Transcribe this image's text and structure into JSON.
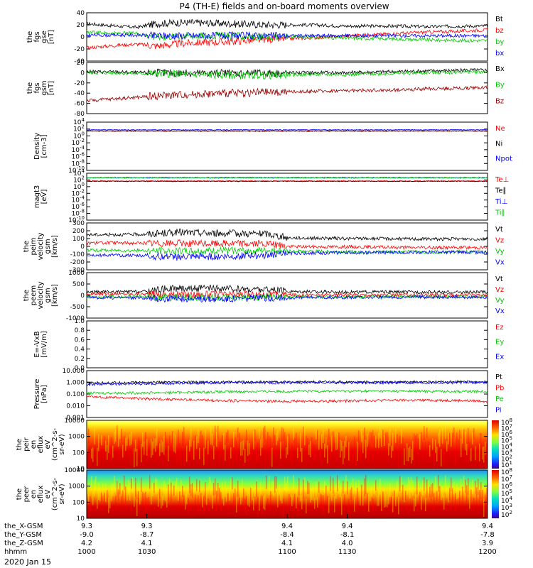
{
  "title": "P4 (TH-E) fields and on-board moments overview",
  "date_label": "2020 Jan 15",
  "colors": {
    "black": "#000000",
    "red": "#ff0000",
    "green": "#00cc00",
    "blue": "#0000ff",
    "darkred": "#990000"
  },
  "chart_data": [
    {
      "type": "line",
      "ylabel_lines": [
        "the",
        "fgs",
        "gse",
        "[nT]"
      ],
      "ylim": [
        -40,
        40
      ],
      "yticks": [
        "40",
        "20",
        "0",
        "-20",
        "-40"
      ],
      "series": [
        {
          "name": "Bt",
          "color": "#000000",
          "x": [
            1000,
            1015,
            1025,
            1035,
            1050,
            1070,
            1090,
            1110,
            1130,
            1150,
            1170,
            1190,
            1200
          ],
          "y": [
            22,
            18,
            16,
            22,
            24,
            22,
            20,
            20,
            18,
            18,
            17,
            18,
            18
          ]
        },
        {
          "name": "bz",
          "color": "#ff0000",
          "x": [
            1000,
            1015,
            1025,
            1035,
            1050,
            1070,
            1090,
            1110,
            1130,
            1150,
            1170,
            1190,
            1200
          ],
          "y": [
            -18,
            -14,
            -12,
            -15,
            -10,
            -8,
            -4,
            -2,
            2,
            5,
            8,
            10,
            12
          ]
        },
        {
          "name": "by",
          "color": "#00cc00",
          "x": [
            1000,
            1015,
            1025,
            1035,
            1050,
            1070,
            1090,
            1110,
            1130,
            1150,
            1170,
            1190,
            1200
          ],
          "y": [
            8,
            6,
            6,
            0,
            2,
            2,
            0,
            0,
            -2,
            -3,
            -5,
            -6,
            -6
          ]
        },
        {
          "name": "bx",
          "color": "#0000ff",
          "x": [
            1000,
            1015,
            1025,
            1035,
            1050,
            1070,
            1090,
            1110,
            1130,
            1150,
            1170,
            1190,
            1200
          ],
          "y": [
            3,
            3,
            3,
            2,
            2,
            2,
            2,
            2,
            2,
            2,
            2,
            2,
            2
          ]
        }
      ]
    },
    {
      "type": "line",
      "ylabel_lines": [
        "the",
        "fgs",
        "gsm",
        "[nT]"
      ],
      "ylim": [
        -90,
        30
      ],
      "yticks": [
        "20",
        "0",
        "-20",
        "-40",
        "-60",
        "-80"
      ],
      "series": [
        {
          "name": "Bx",
          "color": "#000000",
          "x": [
            1000,
            1015,
            1025,
            1035,
            1050,
            1070,
            1090,
            1110,
            1130,
            1150,
            1170,
            1190,
            1200
          ],
          "y": [
            8,
            8,
            6,
            6,
            5,
            5,
            5,
            6,
            6,
            8,
            10,
            12,
            12
          ]
        },
        {
          "name": "By",
          "color": "#00cc00",
          "x": [
            1000,
            1015,
            1025,
            1035,
            1050,
            1070,
            1090,
            1110,
            1130,
            1150,
            1170,
            1190,
            1200
          ],
          "y": [
            6,
            6,
            4,
            4,
            2,
            0,
            0,
            2,
            2,
            4,
            6,
            8,
            8
          ]
        },
        {
          "name": "Bz",
          "color": "#990000",
          "x": [
            1000,
            1015,
            1025,
            1035,
            1050,
            1070,
            1090,
            1110,
            1130,
            1150,
            1170,
            1190,
            1200
          ],
          "y": [
            -60,
            -55,
            -52,
            -48,
            -45,
            -42,
            -40,
            -38,
            -36,
            -35,
            -32,
            -30,
            -28
          ]
        }
      ]
    },
    {
      "type": "line",
      "ylabel_lines": [
        "Density",
        "[cm-3]"
      ],
      "ylog": true,
      "ylim": [
        1e-10,
        10000
      ],
      "yticks": [
        "10^4",
        "10^2",
        "10^0",
        "10^-2",
        "10^-4",
        "10^-6",
        "10^-8",
        "10^-10"
      ],
      "series": [
        {
          "name": "Ne",
          "color": "#ff0000",
          "x": [
            1000,
            1100,
            1200
          ],
          "y": [
            30,
            30,
            30
          ]
        },
        {
          "name": "Ni",
          "color": "#000000",
          "x": [
            1000,
            1100,
            1200
          ],
          "y": [
            25,
            25,
            25
          ]
        },
        {
          "name": "Npot",
          "color": "#0000ff",
          "x": [
            1000,
            1100,
            1200
          ],
          "y": [
            60,
            60,
            60
          ]
        }
      ]
    },
    {
      "type": "line",
      "ylabel_lines": [
        "magt3",
        "[eV]"
      ],
      "ylog": true,
      "ylim": [
        1e-10,
        10000
      ],
      "yticks": [
        "10^4",
        "10^2",
        "10^0",
        "10^-2",
        "10^-4",
        "10^-6",
        "10^-8",
        "10^-10"
      ],
      "series": [
        {
          "name": "Te⊥",
          "color": "#ff0000",
          "x": [
            1000,
            1100,
            1200
          ],
          "y": [
            50,
            50,
            50
          ]
        },
        {
          "name": "Te∥",
          "color": "#000000",
          "x": [
            1000,
            1100,
            1200
          ],
          "y": [
            40,
            40,
            40
          ]
        },
        {
          "name": "Ti⊥",
          "color": "#0000ff",
          "x": [
            1000,
            1100,
            1200
          ],
          "y": [
            500,
            500,
            500
          ]
        },
        {
          "name": "Ti∥",
          "color": "#00cc00",
          "x": [
            1000,
            1100,
            1200
          ],
          "y": [
            400,
            400,
            400
          ]
        }
      ]
    },
    {
      "type": "line",
      "ylabel_lines": [
        "the",
        "peim",
        "velocity",
        "gsm",
        "[km/s]"
      ],
      "ylim": [
        -300,
        300
      ],
      "yticks": [
        "300",
        "200",
        "100",
        "0",
        "-100",
        "-200",
        "-300"
      ],
      "series": [
        {
          "name": "Vt",
          "color": "#000000",
          "x": [
            1000,
            1015,
            1030,
            1045,
            1060,
            1075,
            1090,
            1100,
            1115,
            1130,
            1145,
            1160,
            1180,
            1200
          ],
          "y": [
            150,
            150,
            155,
            180,
            170,
            165,
            160,
            110,
            105,
            100,
            100,
            95,
            95,
            95
          ]
        },
        {
          "name": "Vz",
          "color": "#ff0000",
          "x": [
            1000,
            1015,
            1030,
            1045,
            1060,
            1075,
            1090,
            1100,
            1115,
            1130,
            1145,
            1160,
            1180,
            1200
          ],
          "y": [
            45,
            45,
            40,
            40,
            35,
            40,
            30,
            0,
            -5,
            -5,
            -10,
            -15,
            -15,
            -15
          ]
        },
        {
          "name": "Vy",
          "color": "#00cc00",
          "x": [
            1000,
            1015,
            1030,
            1045,
            1060,
            1075,
            1090,
            1100,
            1115,
            1130,
            1145,
            1160,
            1180,
            1200
          ],
          "y": [
            -50,
            -50,
            -55,
            -60,
            -60,
            -55,
            -55,
            -60,
            -65,
            -70,
            -70,
            -70,
            -70,
            -70
          ]
        },
        {
          "name": "Vx",
          "color": "#0000ff",
          "x": [
            1000,
            1015,
            1030,
            1045,
            1060,
            1075,
            1090,
            1100,
            1115,
            1130,
            1145,
            1160,
            1180,
            1200
          ],
          "y": [
            -110,
            -115,
            -120,
            -140,
            -130,
            -125,
            -110,
            -90,
            -85,
            -80,
            -80,
            -75,
            -75,
            -75
          ]
        }
      ]
    },
    {
      "type": "line",
      "ylabel_lines": [
        "the",
        "peem",
        "velocity",
        "gsm",
        "[km/s]"
      ],
      "ylim": [
        -1000,
        1000
      ],
      "yticks": [
        "1000",
        "500",
        "0",
        "-500",
        "-1000"
      ],
      "series": [
        {
          "name": "Vt",
          "color": "#000000",
          "x": [
            1000,
            1015,
            1030,
            1040,
            1050,
            1060,
            1075,
            1090,
            1100,
            1115,
            1130,
            1150,
            1170,
            1200
          ],
          "y": [
            150,
            150,
            170,
            300,
            320,
            300,
            280,
            250,
            180,
            160,
            150,
            150,
            140,
            140
          ]
        },
        {
          "name": "Vz",
          "color": "#ff0000",
          "x": [
            1000,
            1015,
            1030,
            1040,
            1050,
            1060,
            1075,
            1090,
            1100,
            1115,
            1130,
            1150,
            1170,
            1200
          ],
          "y": [
            60,
            60,
            60,
            40,
            40,
            50,
            40,
            30,
            30,
            20,
            20,
            20,
            20,
            20
          ]
        },
        {
          "name": "Vy",
          "color": "#00cc00",
          "x": [
            1000,
            1015,
            1030,
            1040,
            1050,
            1060,
            1075,
            1090,
            1100,
            1115,
            1130,
            1150,
            1170,
            1200
          ],
          "y": [
            -60,
            -60,
            -70,
            -100,
            -90,
            -90,
            -80,
            -80,
            -70,
            -70,
            -60,
            -60,
            -60,
            -60
          ]
        },
        {
          "name": "Vx",
          "color": "#0000ff",
          "x": [
            1000,
            1015,
            1030,
            1040,
            1050,
            1060,
            1075,
            1090,
            1100,
            1115,
            1130,
            1150,
            1170,
            1200
          ],
          "y": [
            -100,
            -100,
            -110,
            -150,
            -160,
            -150,
            -140,
            -120,
            -100,
            -90,
            -90,
            -80,
            -80,
            -80
          ]
        }
      ]
    },
    {
      "type": "line",
      "ylabel_lines": [
        "E=-VxB",
        "[mV/m]"
      ],
      "ylim": [
        0,
        1
      ],
      "yticks": [
        "1.0",
        "0.8",
        "0.6",
        "0.4",
        "0.2",
        "0.0"
      ],
      "series": [
        {
          "name": "Ez",
          "color": "#ff0000",
          "x": [],
          "y": []
        },
        {
          "name": "Ey",
          "color": "#00cc00",
          "x": [],
          "y": []
        },
        {
          "name": "Ex",
          "color": "#0000ff",
          "x": [],
          "y": []
        }
      ]
    },
    {
      "type": "line",
      "ylabel_lines": [
        "Pressure",
        "[nPa]"
      ],
      "ylog": true,
      "ylim": [
        0.001,
        10
      ],
      "yticks": [
        "10.000",
        "1.000",
        "0.100",
        "0.010",
        "0.001"
      ],
      "series": [
        {
          "name": "Pt",
          "color": "#000000",
          "x": [
            1000,
            1030,
            1060,
            1090,
            1120,
            1150,
            1180,
            1200
          ],
          "y": [
            0.9,
            1.0,
            1.05,
            1.1,
            1.1,
            1.05,
            1.1,
            1.1
          ]
        },
        {
          "name": "Pb",
          "color": "#ff0000",
          "x": [
            1000,
            1030,
            1060,
            1090,
            1120,
            1150,
            1180,
            1200
          ],
          "y": [
            0.06,
            0.04,
            0.03,
            0.025,
            0.025,
            0.03,
            0.03,
            0.025
          ]
        },
        {
          "name": "Pe",
          "color": "#00cc00",
          "x": [
            1000,
            1030,
            1060,
            1090,
            1120,
            1150,
            1180,
            1200
          ],
          "y": [
            0.12,
            0.13,
            0.15,
            0.17,
            0.18,
            0.18,
            0.17,
            0.17
          ]
        },
        {
          "name": "Pi",
          "color": "#0000ff",
          "x": [
            1000,
            1030,
            1060,
            1090,
            1120,
            1150,
            1180,
            1200
          ],
          "y": [
            0.7,
            0.8,
            0.9,
            0.95,
            0.95,
            0.95,
            0.95,
            1.0
          ]
        }
      ]
    },
    {
      "type": "heatmap",
      "ylabel_lines": [
        "the",
        "peir",
        "en",
        "eflux",
        "eV",
        "(cm^2-s-",
        "sr-eV)"
      ],
      "ylog": true,
      "ylim": [
        10,
        20000
      ],
      "yticks": [
        "10000",
        "1000",
        "100",
        "10"
      ],
      "colorbar_ticks": [
        "10^8",
        "10^7",
        "10^6",
        "10^5",
        "10^4",
        "10^3",
        "10^2",
        "10^1"
      ],
      "colorbar_label": "[eV/(cm^2-s-sr-eV)] (All Qs)"
    },
    {
      "type": "heatmap",
      "ylabel_lines": [
        "the",
        "peer",
        "en",
        "eflux",
        "eV",
        "(cm^2-s-",
        "sr-eV)"
      ],
      "ylog": true,
      "ylim": [
        10,
        20000
      ],
      "yticks": [
        "10000",
        "1000",
        "100",
        "10"
      ],
      "colorbar_ticks": [
        "10^8",
        "10^7",
        "10^6",
        "10^5",
        "10^4",
        "10^3",
        "10^2"
      ],
      "colorbar_label": "[eV/(cm^2-s-sr-eV)]"
    }
  ],
  "x_axis": {
    "range": [
      1000,
      1200
    ],
    "rows": [
      {
        "label": "the_X-GSM",
        "values": [
          "9.3",
          "9.3",
          "9.4",
          "9.4",
          "9.4"
        ]
      },
      {
        "label": "the_Y-GSM",
        "values": [
          "-9.0",
          "-8.7",
          "-8.4",
          "-8.1",
          "-7.8"
        ]
      },
      {
        "label": "the_Z-GSM",
        "values": [
          "4.2",
          "4.1",
          "4.1",
          "4.0",
          "3.9"
        ]
      },
      {
        "label": "hhmm",
        "values": [
          "1000",
          "1030",
          "1100",
          "1130",
          "1200"
        ]
      }
    ]
  }
}
